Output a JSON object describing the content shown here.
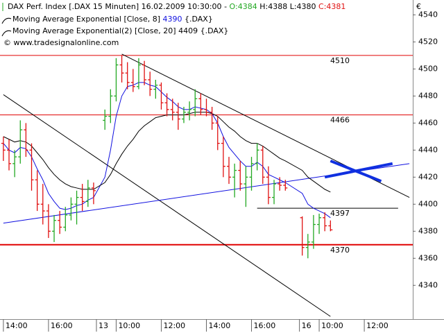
{
  "chart_data": {
    "type": "ohlc",
    "header": {
      "instrument": "DAX Perf. Index [.DAX  15 Minuten]",
      "datetime": "16.02.2009 10:30:00",
      "separator": "-",
      "open": "O:4384",
      "high": "H:4388",
      "low": "L:4380",
      "close": "C:4381"
    },
    "copyright": "© www.tradesignalonline.com",
    "currency": "€",
    "x": [
      0,
      1,
      2,
      3,
      4,
      5,
      6,
      7,
      8,
      9,
      10,
      11,
      12,
      13,
      14,
      15,
      16,
      18,
      19,
      20,
      21,
      22,
      23,
      24,
      25,
      26,
      27,
      28,
      29,
      30,
      31,
      32,
      33,
      34,
      35,
      36,
      37,
      38,
      39,
      40,
      41,
      42,
      43,
      44,
      45,
      46,
      47,
      48,
      49,
      50,
      53,
      54,
      55,
      56,
      57,
      58
    ],
    "open": [
      4445,
      4440,
      4430,
      4435,
      4455,
      4440,
      4418,
      4400,
      4395,
      4380,
      4388,
      4383,
      4392,
      4400,
      4405,
      4402,
      4412,
      4462,
      4465,
      4480,
      4503,
      4497,
      4490,
      4487,
      4503,
      4492,
      4485,
      4488,
      4475,
      4470,
      4468,
      4463,
      4468,
      4470,
      4478,
      4470,
      4468,
      4460,
      4445,
      4428,
      4420,
      4425,
      4415,
      4420,
      4430,
      4440,
      4420,
      4405,
      4415,
      4414,
      4390,
      4368,
      4372,
      4385,
      4390,
      4384
    ],
    "high": [
      4450,
      4448,
      4440,
      4462,
      4460,
      4445,
      4425,
      4415,
      4400,
      4392,
      4395,
      4398,
      4405,
      4410,
      4415,
      4418,
      4416,
      4470,
      4485,
      4508,
      4510,
      4505,
      4500,
      4508,
      4506,
      4498,
      4492,
      4490,
      4482,
      4478,
      4475,
      4472,
      4476,
      4485,
      4482,
      4478,
      4472,
      4465,
      4450,
      4435,
      4430,
      4432,
      4428,
      4435,
      4445,
      4443,
      4428,
      4418,
      4420,
      4418,
      4391,
      4378,
      4392,
      4393,
      4394,
      4388
    ],
    "low": [
      4432,
      4425,
      4420,
      4430,
      4435,
      4410,
      4395,
      4385,
      4375,
      4372,
      4378,
      4380,
      4388,
      4385,
      4395,
      4398,
      4400,
      4455,
      4460,
      4476,
      4490,
      4485,
      4483,
      4485,
      4488,
      4480,
      4478,
      4470,
      4465,
      4462,
      4455,
      4460,
      4462,
      4465,
      4466,
      4465,
      4455,
      4440,
      4420,
      4415,
      4405,
      4410,
      4398,
      4410,
      4425,
      4415,
      4400,
      4400,
      4410,
      4410,
      4362,
      4360,
      4367,
      4378,
      4380,
      4380
    ],
    "close": [
      4440,
      4430,
      4435,
      4455,
      4440,
      4418,
      4400,
      4395,
      4380,
      4388,
      4383,
      4392,
      4400,
      4405,
      4402,
      4412,
      4410,
      4465,
      4480,
      4503,
      4497,
      4490,
      4487,
      4503,
      4492,
      4485,
      4488,
      4475,
      4470,
      4468,
      4463,
      4468,
      4470,
      4478,
      4470,
      4468,
      4460,
      4445,
      4428,
      4420,
      4425,
      4415,
      4420,
      4430,
      4440,
      4420,
      4405,
      4415,
      4414,
      4412,
      4368,
      4372,
      4385,
      4390,
      4384,
      4381
    ],
    "up_color": "#22a822",
    "down_color": "#e01010",
    "series": [
      {
        "name": "Moving Average Exponential [Close, 8]",
        "value_label": "4390",
        "instrument": "{.DAX}",
        "color": "#1010e0",
        "values": [
          4445,
          4440,
          4438,
          4442,
          4441,
          4435,
          4426,
          4418,
          4408,
          4402,
          4397,
          4396,
          4397,
          4399,
          4400,
          4403,
          4405,
          4420,
          4440,
          4465,
          4480,
          4487,
          4488,
          4490,
          4490,
          4488,
          4487,
          4483,
          4479,
          4476,
          4472,
          4470,
          4470,
          4472,
          4471,
          4470,
          4467,
          4460,
          4450,
          4442,
          4437,
          4432,
          4428,
          4428,
          4431,
          4428,
          4422,
          4420,
          4418,
          4416,
          4408,
          4400,
          4397,
          4395,
          4393,
          4390
        ]
      },
      {
        "name": "Moving Average Exponential(2) [Close, 20]",
        "value_label": "4409",
        "instrument": "{.DAX}",
        "color": "#000000",
        "values": [
          4450,
          4448,
          4446,
          4447,
          4446,
          4443,
          4438,
          4433,
          4427,
          4422,
          4418,
          4415,
          4413,
          4412,
          4411,
          4411,
          4411,
          4416,
          4422,
          4430,
          4437,
          4443,
          4448,
          4454,
          4458,
          4461,
          4464,
          4465,
          4466,
          4466,
          4466,
          4466,
          4467,
          4468,
          4468,
          4468,
          4467,
          4465,
          4461,
          4457,
          4454,
          4450,
          4447,
          4445,
          4445,
          4443,
          4440,
          4437,
          4434,
          4432,
          4425,
          4420,
          4417,
          4414,
          4411,
          4409
        ]
      }
    ],
    "levels": [
      {
        "value": 4510,
        "color": "#e00000",
        "width": 1
      },
      {
        "value": 4466,
        "color": "#e00000",
        "width": 1
      },
      {
        "value": 4370,
        "color": "#e00000",
        "width": 2
      },
      {
        "value": 4397,
        "color": "#000000",
        "width": 1,
        "x": [
          45,
          70
        ]
      }
    ],
    "trend_lines": [
      {
        "x": [
          21,
          72
        ],
        "y": [
          4511,
          4405
        ],
        "color": "#000000",
        "width": 1
      },
      {
        "x": [
          0,
          58
        ],
        "y": [
          4481,
          4317
        ],
        "color": "#000000",
        "width": 1
      },
      {
        "x": [
          0,
          72
        ],
        "y": [
          4386,
          4430
        ],
        "color": "#1010e0",
        "width": 1
      },
      {
        "x": [
          58,
          67
        ],
        "y": [
          4432,
          4417
        ],
        "color": "#1030e0",
        "width": 4
      },
      {
        "x": [
          57,
          69
        ],
        "y": [
          4420,
          4430
        ],
        "color": "#1030e0",
        "width": 4
      }
    ],
    "xlim": [
      -0.6,
      72.6
    ],
    "xticks": [
      {
        "value": 0,
        "label": "14:00"
      },
      {
        "value": 8,
        "label": "16:00"
      },
      {
        "value": 16.5,
        "label": "13"
      },
      {
        "value": 20,
        "label": "10:00"
      },
      {
        "value": 28,
        "label": "12:00"
      },
      {
        "value": 36,
        "label": "14:00"
      },
      {
        "value": 44,
        "label": "16:00"
      },
      {
        "value": 52.5,
        "label": "16"
      },
      {
        "value": 56,
        "label": "10:00"
      },
      {
        "value": 64,
        "label": "12:00"
      }
    ],
    "ylim": [
      4315,
      4551
    ],
    "yticks": [
      4340,
      4360,
      4380,
      4400,
      4420,
      4440,
      4460,
      4480,
      4500,
      4520,
      4540
    ]
  }
}
